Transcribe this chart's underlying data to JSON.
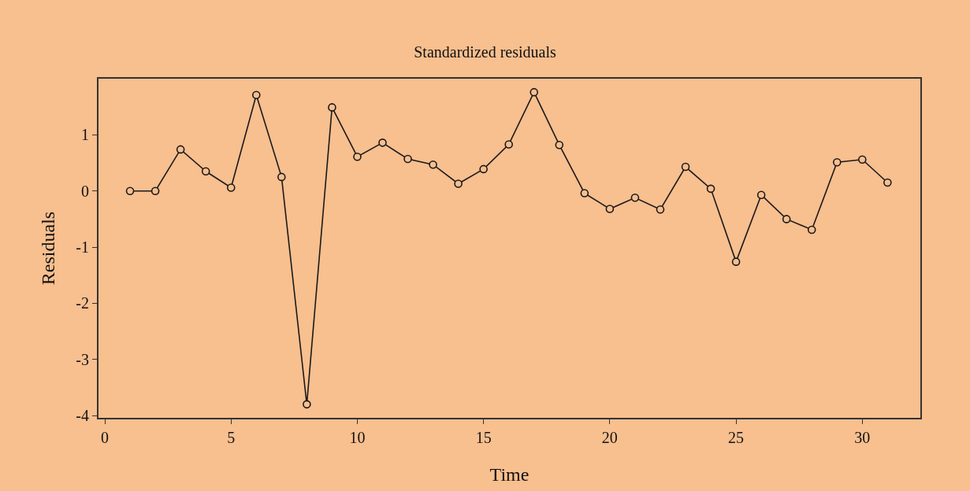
{
  "chart_data": {
    "type": "line",
    "title": "Standardized residuals",
    "xlabel": "Time",
    "ylabel": "Residuals",
    "x": [
      1,
      2,
      3,
      4,
      5,
      6,
      7,
      8,
      9,
      10,
      11,
      12,
      13,
      14,
      15,
      16,
      17,
      18,
      19,
      20,
      21,
      22,
      23,
      24,
      25,
      26,
      27,
      28,
      29,
      30,
      31
    ],
    "series": [
      {
        "color": "#1a1a1a",
        "values": [
          0,
          0,
          0.74,
          0.35,
          0.06,
          1.71,
          0.25,
          -3.8,
          1.49,
          0.61,
          0.86,
          0.57,
          0.47,
          0.13,
          0.39,
          0.83,
          1.76,
          0.82,
          -0.04,
          -0.32,
          -0.12,
          -0.33,
          0.43,
          0.04,
          -1.26,
          -0.07,
          -0.5,
          -0.69,
          0.51,
          0.56,
          0.15
        ]
      }
    ],
    "xlim": [
      -0.25,
      32.3
    ],
    "ylim": [
      -4.04,
      2.0
    ],
    "xticks": [
      0,
      5,
      10,
      15,
      20,
      25,
      30
    ],
    "yticks": [
      -4,
      -3,
      -2,
      -1,
      0,
      1
    ],
    "marker": "circle",
    "line_style": "solid",
    "grid": false
  }
}
